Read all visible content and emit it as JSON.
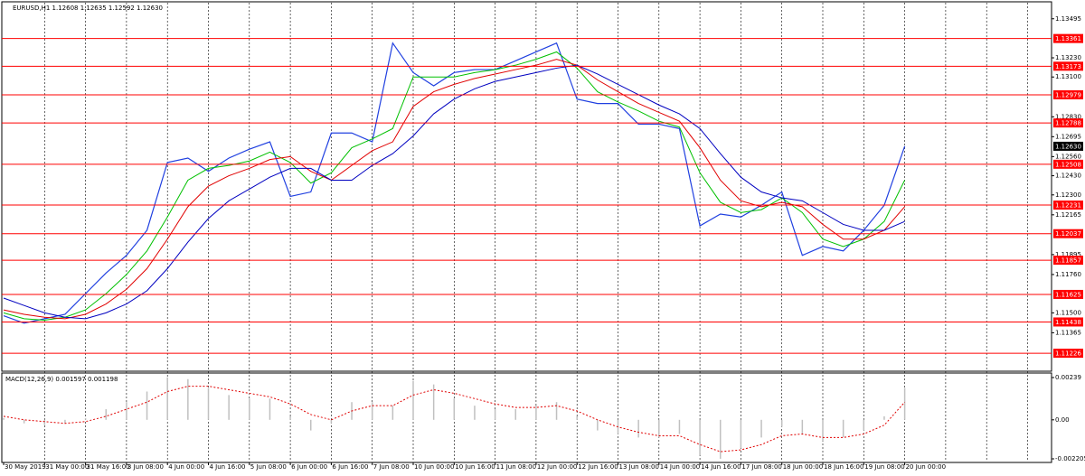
{
  "chart_data": [
    {
      "type": "line",
      "title": "EURUSD,H1  1.12608 1.12635 1.12592 1.12630",
      "categories": [
        "30 May 2019",
        null,
        "31 May 00:00",
        null,
        "31 May 16:00",
        null,
        "3 Jun 08:00",
        null,
        "4 Jun 00:00",
        null,
        "4 Jun 16:00",
        null,
        "5 Jun 08:00",
        null,
        "6 Jun 00:00",
        null,
        "6 Jun 16:00",
        null,
        "7 Jun 08:00",
        null,
        "10 Jun 00:00",
        null,
        "10 Jun 16:00",
        null,
        "11 Jun 08:00",
        null,
        "12 Jun 00:00",
        null,
        "12 Jun 16:00",
        null,
        "13 Jun 08:00",
        null,
        "14 Jun 00:00",
        null,
        "14 Jun 16:00",
        null,
        "17 Jun 08:00",
        null,
        "18 Jun 00:00",
        null,
        "18 Jun 16:00",
        null,
        "19 Jun 08:00",
        null,
        "20 Jun 00:00"
      ],
      "series": [
        {
          "color": "#2040e0",
          "values": [
            1.1148,
            1.1143,
            1.1146,
            1.1149,
            1.1163,
            1.1177,
            1.1189,
            1.1206,
            1.1252,
            1.1255,
            1.1246,
            1.1255,
            1.1261,
            1.1266,
            1.1229,
            1.1232,
            1.1272,
            1.1272,
            1.1266,
            1.1333,
            1.1313,
            1.1304,
            1.1313,
            1.1315,
            1.1315,
            1.1321,
            1.1327,
            1.1333,
            1.1295,
            1.1292,
            1.1292,
            1.1278,
            1.1278,
            1.1275,
            1.1209,
            1.1217,
            1.1215,
            1.1223,
            1.1232,
            1.1189,
            1.1195,
            1.1192,
            1.1206,
            1.1223,
            1.1263
          ]
        },
        {
          "color": "#00c000",
          "values": [
            1.115,
            1.1146,
            1.1145,
            1.1147,
            1.1152,
            1.1163,
            1.1176,
            1.1192,
            1.1215,
            1.124,
            1.1248,
            1.125,
            1.1253,
            1.1259,
            1.1252,
            1.1238,
            1.1245,
            1.1262,
            1.1268,
            1.1275,
            1.131,
            1.131,
            1.131,
            1.1313,
            1.1315,
            1.1318,
            1.1322,
            1.1327,
            1.1316,
            1.13,
            1.1293,
            1.1287,
            1.128,
            1.1276,
            1.1245,
            1.1225,
            1.1218,
            1.122,
            1.1228,
            1.1218,
            1.12,
            1.1195,
            1.12,
            1.1212,
            1.124
          ]
        },
        {
          "color": "#e00000",
          "values": [
            1.1152,
            1.1149,
            1.1147,
            1.1146,
            1.1149,
            1.1156,
            1.1166,
            1.118,
            1.12,
            1.1222,
            1.1236,
            1.1243,
            1.1248,
            1.1254,
            1.1256,
            1.1246,
            1.124,
            1.125,
            1.126,
            1.1266,
            1.129,
            1.13,
            1.1305,
            1.1309,
            1.1312,
            1.1315,
            1.1318,
            1.1322,
            1.1318,
            1.1308,
            1.13,
            1.1292,
            1.1286,
            1.128,
            1.1262,
            1.124,
            1.1226,
            1.1222,
            1.1225,
            1.1222,
            1.121,
            1.12,
            1.12,
            1.1206,
            1.1222
          ]
        },
        {
          "color": "#0000c0",
          "values": [
            1.116,
            1.1155,
            1.115,
            1.1147,
            1.1146,
            1.115,
            1.1156,
            1.1165,
            1.118,
            1.1198,
            1.1214,
            1.1226,
            1.1234,
            1.1242,
            1.1248,
            1.1248,
            1.124,
            1.124,
            1.125,
            1.1258,
            1.127,
            1.1285,
            1.1295,
            1.1302,
            1.1307,
            1.131,
            1.1313,
            1.1316,
            1.1318,
            1.1312,
            1.1305,
            1.1298,
            1.1291,
            1.1285,
            1.1275,
            1.1258,
            1.1242,
            1.1232,
            1.1228,
            1.1226,
            1.1218,
            1.121,
            1.1206,
            1.1206,
            1.1212
          ]
        }
      ],
      "levels": [
        1.13361,
        1.13173,
        1.12979,
        1.12788,
        1.12508,
        1.12231,
        1.12037,
        1.11857,
        1.11625,
        1.11438,
        1.11226
      ],
      "level_color": "#ff0000",
      "current_price": {
        "value": 1.1263,
        "label": "1.12630"
      },
      "ylim": [
        1.1111,
        1.1361
      ],
      "yticks": [
        1.13495,
        {
          "value": 1.1323,
          "label": "1.13230"
        },
        {
          "value": 1.131,
          "label": "1.13100"
        },
        {
          "value": 1.1283,
          "label": "1.12830"
        },
        1.12695,
        {
          "value": 1.1256,
          "label": "1.12560"
        },
        {
          "value": 1.1243,
          "label": "1.12430"
        },
        {
          "value": 1.123,
          "label": "1.12300"
        },
        1.12165,
        1.11895,
        {
          "value": 1.1176,
          "label": "1.11760"
        },
        {
          "value": 1.115,
          "label": "1.11500"
        },
        1.11365
      ]
    },
    {
      "type": "macd",
      "title": "MACD(12,26,9) 0.001597 0.001198",
      "series": [
        {
          "type": "bar",
          "color": "#c0c0c0",
          "values": [
            0.0001,
            -0.0002,
            -0.0003,
            -0.0002,
            0.0001,
            0.0006,
            0.001,
            0.0016,
            0.0024,
            0.0023,
            0.0018,
            0.0014,
            0.0012,
            0.0012,
            0.0002,
            -0.0006,
            -0.0002,
            0.001,
            0.001,
            0.0008,
            0.0022,
            0.002,
            0.0012,
            0.0008,
            0.0006,
            0.0006,
            0.0008,
            0.001,
            0.0002,
            -0.0006,
            -0.0008,
            -0.001,
            -0.001,
            -0.0008,
            -0.002,
            -0.0022,
            -0.0016,
            -0.001,
            -0.0004,
            -0.0008,
            -0.0012,
            -0.001,
            -0.0006,
            0.0002,
            0.0018
          ]
        },
        {
          "type": "line",
          "color": "#e00000",
          "values": [
            0.0002,
            0,
            -0.0001,
            -0.0002,
            -0.0001,
            0.0002,
            0.0006,
            0.001,
            0.0016,
            0.0019,
            0.0019,
            0.0017,
            0.0015,
            0.0013,
            0.0009,
            0.0003,
            0,
            0.0005,
            0.0008,
            0.0008,
            0.0014,
            0.0017,
            0.0015,
            0.0012,
            0.0009,
            0.0007,
            0.0007,
            0.0008,
            0.0005,
            0,
            -0.0004,
            -0.0007,
            -0.0009,
            -0.0009,
            -0.0014,
            -0.0018,
            -0.0017,
            -0.0014,
            -0.0009,
            -0.0008,
            -0.001,
            -0.001,
            -0.0008,
            -0.0003,
            0.001
          ]
        }
      ],
      "ylim": [
        -0.002205,
        0.00239
      ],
      "yticks": [
        0.00239,
        {
          "value": 0,
          "label": "0.00"
        },
        -0.002205
      ]
    }
  ]
}
